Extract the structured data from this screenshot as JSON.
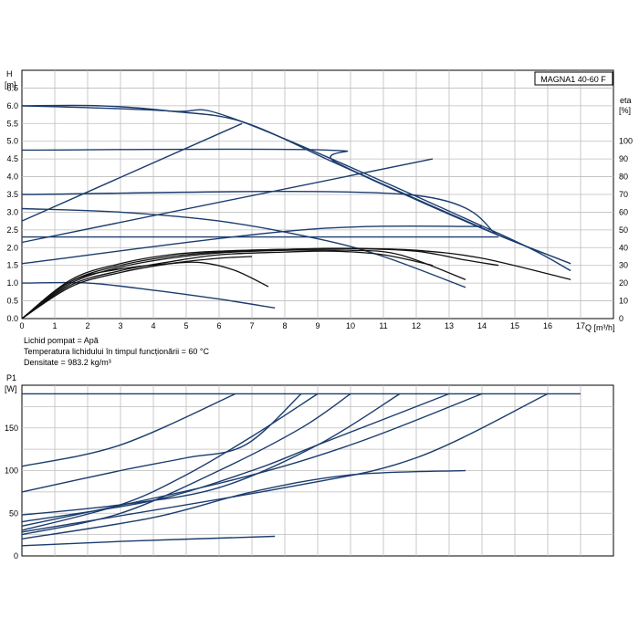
{
  "chart_data": [
    {
      "type": "line",
      "title": "MAGNA1 40-60 F",
      "ylabel": "H",
      "ylabel_unit": "[m]",
      "y2label": "eta",
      "y2label_unit": "[%]",
      "xlabel": "Q [m³/h]",
      "xlim": [
        0,
        18
      ],
      "ylim": [
        0,
        7
      ],
      "y2lim": [
        0,
        100
      ],
      "xticks": [
        "0",
        "1",
        "2",
        "3",
        "4",
        "5",
        "6",
        "7",
        "8",
        "9",
        "10",
        "11",
        "12",
        "13",
        "14",
        "15",
        "16",
        "17"
      ],
      "yticks": [
        "0.0",
        "0.5",
        "1.0",
        "1.5",
        "2.0",
        "2.5",
        "3.0",
        "3.5",
        "4.0",
        "4.5",
        "5.0",
        "5.5",
        "6.0",
        "6.5"
      ],
      "y2ticks": [
        "0",
        "10",
        "20",
        "30",
        "40",
        "50",
        "60",
        "70",
        "80",
        "90",
        "100"
      ],
      "grid": true,
      "head_curves": [
        {
          "style": "blue",
          "points": [
            [
              0,
              6.0
            ],
            [
              2.4,
              6.0
            ],
            [
              4.5,
              5.85
            ],
            [
              6.7,
              5.55
            ],
            [
              9.5,
              4.4
            ],
            [
              12.0,
              3.35
            ],
            [
              14.5,
              2.35
            ],
            [
              16.7,
              1.55
            ]
          ]
        },
        {
          "style": "blue",
          "points": [
            [
              0,
              6.0
            ],
            [
              4.5,
              5.85
            ],
            [
              6.7,
              5.55
            ],
            [
              14.5,
              2.4
            ],
            [
              16.7,
              1.35
            ]
          ]
        },
        {
          "style": "blue",
          "points": [
            [
              0,
              4.75
            ],
            [
              9.3,
              4.75
            ],
            [
              9.6,
              4.38
            ],
            [
              14.5,
              2.35
            ]
          ]
        },
        {
          "style": "blue",
          "points": [
            [
              0,
              3.5
            ],
            [
              11.7,
              3.5
            ],
            [
              14.5,
              2.35
            ]
          ]
        },
        {
          "style": "blue",
          "points": [
            [
              0,
              2.3
            ],
            [
              14.5,
              2.3
            ]
          ]
        },
        {
          "style": "blue",
          "points": [
            [
              0,
              3.1
            ],
            [
              3,
              3.0
            ],
            [
              6,
              2.75
            ],
            [
              9,
              2.25
            ],
            [
              11,
              1.75
            ],
            [
              13.5,
              0.88
            ]
          ]
        },
        {
          "style": "blue",
          "points": [
            [
              0,
              1.0
            ],
            [
              2,
              1.0
            ],
            [
              4,
              0.8
            ],
            [
              6,
              0.55
            ],
            [
              7.7,
              0.3
            ]
          ]
        },
        {
          "style": "blue",
          "points": [
            [
              0,
              2.15
            ],
            [
              12.5,
              4.5
            ]
          ]
        },
        {
          "style": "blue",
          "points": [
            [
              0,
              2.75
            ],
            [
              6.7,
              5.5
            ]
          ]
        },
        {
          "style": "blue",
          "points": [
            [
              0,
              1.55
            ],
            [
              8.5,
              2.5
            ],
            [
              14,
              2.6
            ]
          ]
        }
      ],
      "efficiency_curves": [
        {
          "style": "black",
          "points": [
            [
              0,
              0
            ],
            [
              1.5,
              22
            ],
            [
              3,
              31
            ],
            [
              4.5,
              36
            ],
            [
              6,
              38
            ],
            [
              8,
              39
            ],
            [
              10,
              39.5
            ],
            [
              12,
              38.5
            ],
            [
              14,
              34
            ],
            [
              16.7,
              22
            ]
          ]
        },
        {
          "style": "black",
          "points": [
            [
              0,
              0
            ],
            [
              1.5,
              21
            ],
            [
              3,
              30
            ],
            [
              4.5,
              35
            ],
            [
              6,
              37.5
            ],
            [
              8,
              39
            ],
            [
              10,
              39.5
            ],
            [
              12,
              38
            ],
            [
              13.5,
              33
            ],
            [
              14.5,
              30
            ]
          ]
        },
        {
          "style": "black",
          "points": [
            [
              0,
              0
            ],
            [
              1.5,
              20
            ],
            [
              3,
              29
            ],
            [
              4.5,
              34
            ],
            [
              6,
              37
            ],
            [
              8,
              38.5
            ],
            [
              10,
              38.5
            ],
            [
              11.5,
              36
            ],
            [
              13.5,
              22
            ]
          ]
        },
        {
          "style": "black",
          "points": [
            [
              0,
              0
            ],
            [
              1.5,
              19
            ],
            [
              3,
              27
            ],
            [
              4.5,
              32
            ],
            [
              6,
              36
            ],
            [
              8,
              37.5
            ],
            [
              9.5,
              38
            ],
            [
              11,
              36
            ],
            [
              12.5,
              30
            ]
          ]
        },
        {
          "style": "black",
          "points": [
            [
              0,
              0
            ],
            [
              1.5,
              18
            ],
            [
              3,
              26
            ],
            [
              4.5,
              31
            ],
            [
              6,
              34
            ],
            [
              7,
              35
            ]
          ]
        },
        {
          "style": "black",
          "points": [
            [
              0,
              0
            ],
            [
              1.5,
              21
            ],
            [
              3,
              28
            ],
            [
              4.5,
              31
            ],
            [
              5.5,
              31.5
            ],
            [
              6.5,
              27
            ],
            [
              7.5,
              18
            ]
          ]
        }
      ],
      "annotations": [
        "Lichid pompat = Apă",
        "Temperatura lichidului în timpul funcționării = 60 °C",
        "Densitate = 983.2 kg/m³"
      ]
    },
    {
      "type": "line",
      "ylabel": "P1",
      "ylabel_unit": "[W]",
      "xlim": [
        0,
        18
      ],
      "ylim": [
        0,
        200
      ],
      "yticks": [
        "0",
        "50",
        "100",
        "150"
      ],
      "grid": true,
      "power_curves": [
        {
          "points": [
            [
              0,
              190
            ],
            [
              17,
              190
            ]
          ]
        },
        {
          "points": [
            [
              0,
              105
            ],
            [
              3,
              130
            ],
            [
              6.5,
              190
            ]
          ]
        },
        {
          "points": [
            [
              0,
              75
            ],
            [
              3,
              100
            ],
            [
              5,
              115
            ],
            [
              6.8,
              130
            ],
            [
              8.5,
              190
            ]
          ]
        },
        {
          "points": [
            [
              0,
              48
            ],
            [
              3,
              60
            ],
            [
              6,
              80
            ],
            [
              9,
              130
            ],
            [
              11.5,
              190
            ]
          ]
        },
        {
          "points": [
            [
              0,
              40
            ],
            [
              4,
              65
            ],
            [
              7,
              100
            ],
            [
              9,
              130
            ],
            [
              13,
              190
            ]
          ]
        },
        {
          "points": [
            [
              0,
              35
            ],
            [
              6,
              85
            ],
            [
              10,
              130
            ],
            [
              14,
              190
            ]
          ]
        },
        {
          "points": [
            [
              0,
              28
            ],
            [
              8,
              80
            ],
            [
              12,
              115
            ],
            [
              16,
              190
            ]
          ]
        },
        {
          "points": [
            [
              0,
              30
            ],
            [
              3,
              60
            ],
            [
              5,
              95
            ],
            [
              7,
              140
            ],
            [
              9,
              190
            ]
          ]
        },
        {
          "points": [
            [
              0,
              25
            ],
            [
              3,
              50
            ],
            [
              6,
              100
            ],
            [
              8.5,
              150
            ],
            [
              10,
              190
            ]
          ]
        },
        {
          "points": [
            [
              0,
              20
            ],
            [
              4,
              45
            ],
            [
              7,
              75
            ],
            [
              10,
              95
            ],
            [
              13.5,
              100
            ]
          ]
        },
        {
          "points": [
            [
              0,
              12
            ],
            [
              3,
              17
            ],
            [
              7.7,
              23
            ]
          ]
        }
      ]
    }
  ]
}
